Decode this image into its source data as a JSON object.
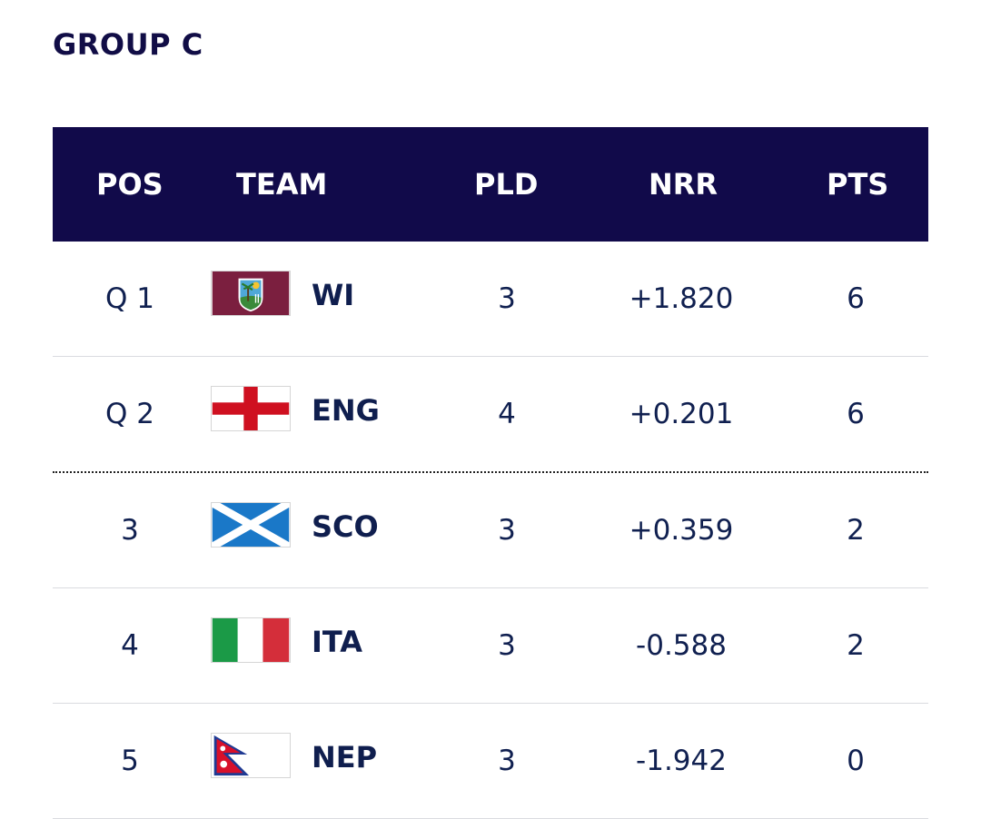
{
  "group_title": "GROUP C",
  "headers": {
    "pos": "POS",
    "team": "TEAM",
    "pld": "PLD",
    "nrr": "NRR",
    "pts": "PTS"
  },
  "rows": [
    {
      "pos": "Q 1",
      "team": "WI",
      "flag": "west-indies-flag-icon",
      "pld": "3",
      "nrr": "+1.820",
      "pts": "6"
    },
    {
      "pos": "Q 2",
      "team": "ENG",
      "flag": "england-flag-icon",
      "pld": "4",
      "nrr": "+0.201",
      "pts": "6"
    },
    {
      "pos": "3",
      "team": "SCO",
      "flag": "scotland-flag-icon",
      "pld": "3",
      "nrr": "+0.359",
      "pts": "2"
    },
    {
      "pos": "4",
      "team": "ITA",
      "flag": "italy-flag-icon",
      "pld": "3",
      "nrr": "-0.588",
      "pts": "2"
    },
    {
      "pos": "5",
      "team": "NEP",
      "flag": "nepal-flag-icon",
      "pld": "3",
      "nrr": "-1.942",
      "pts": "0"
    }
  ],
  "colors": {
    "header_bg": "#110a4a",
    "text": "#102050"
  }
}
